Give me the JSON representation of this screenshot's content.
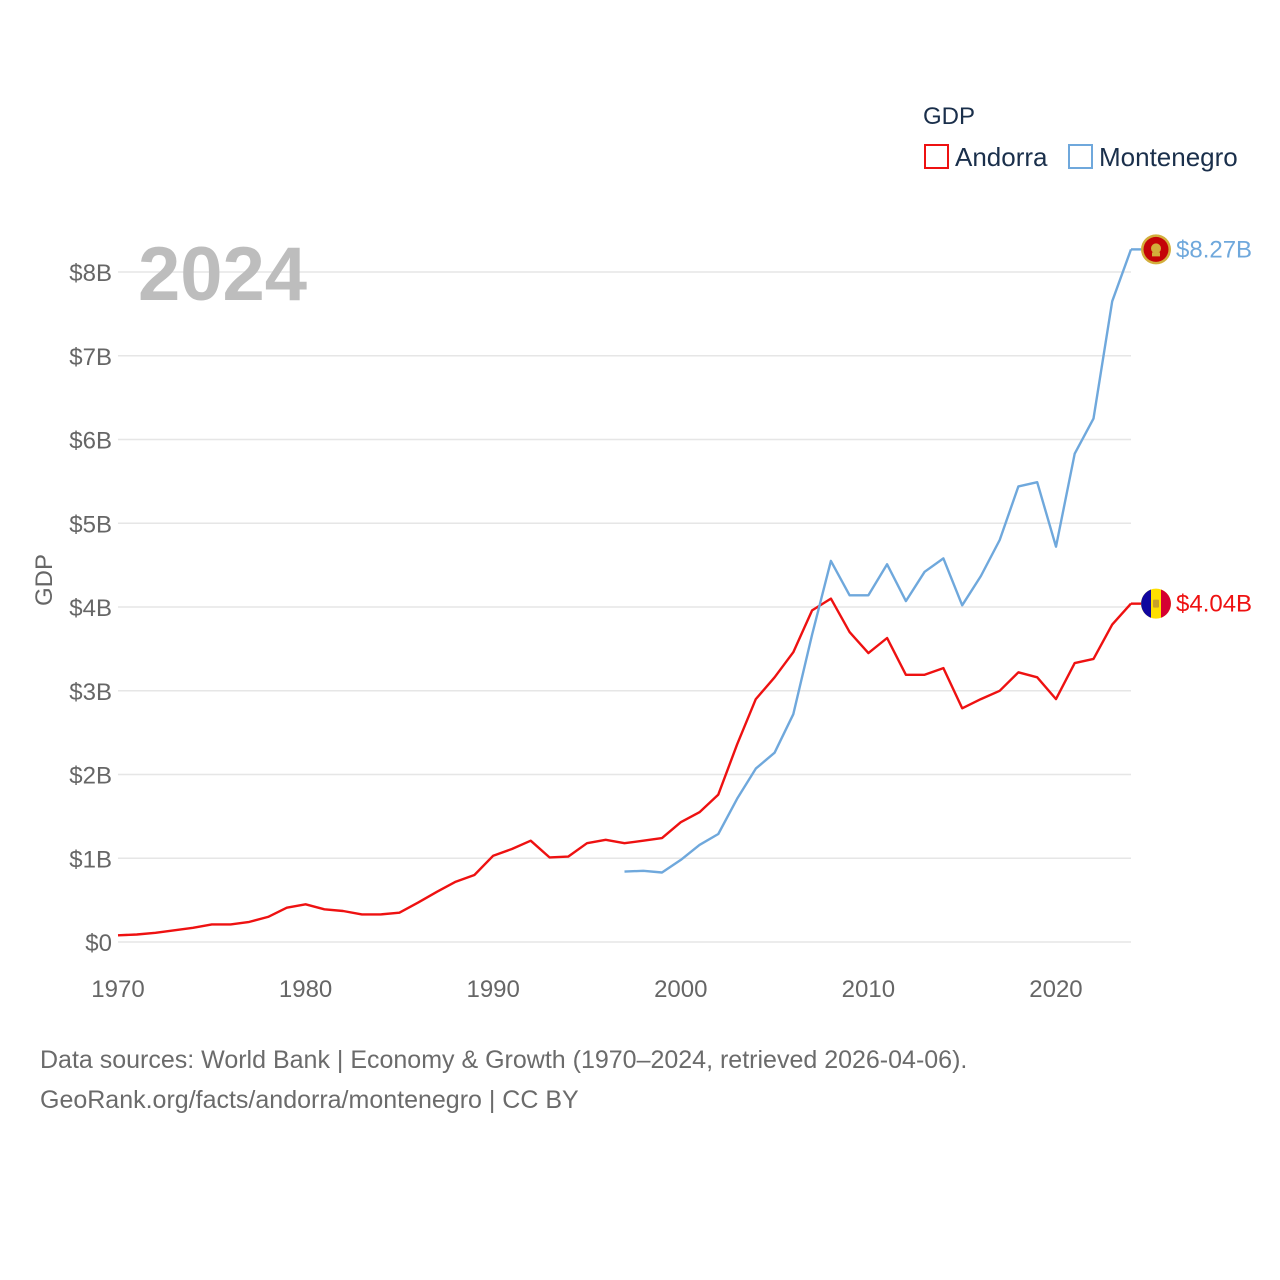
{
  "colors": {
    "andorra": "#ee1111",
    "montenegro": "#6fa8dc",
    "grid": "#e6e6e6",
    "text": "#666666"
  },
  "chart_data": {
    "type": "line",
    "title": "",
    "year_label": "2024",
    "legend_title": "GDP",
    "xlabel": "",
    "ylabel": "GDP",
    "xlim": [
      1970,
      2024
    ],
    "ylim": [
      0,
      8.5
    ],
    "x_ticks": [
      1970,
      1980,
      1990,
      2000,
      2010,
      2020
    ],
    "y_ticks": [
      0,
      1,
      2,
      3,
      4,
      5,
      6,
      7,
      8
    ],
    "y_tick_labels": [
      "$0",
      "$1B",
      "$2B",
      "$3B",
      "$4B",
      "$5B",
      "$6B",
      "$7B",
      "$8B"
    ],
    "legend_placement": "top-right",
    "series": [
      {
        "name": "Andorra",
        "key": "andorra",
        "end_label": "$4.04B",
        "unit": "billion USD",
        "x": [
          1970,
          1971,
          1972,
          1973,
          1974,
          1975,
          1976,
          1977,
          1978,
          1979,
          1980,
          1981,
          1982,
          1983,
          1984,
          1985,
          1986,
          1987,
          1988,
          1989,
          1990,
          1991,
          1992,
          1993,
          1994,
          1995,
          1996,
          1997,
          1998,
          1999,
          2000,
          2001,
          2002,
          2003,
          2004,
          2005,
          2006,
          2007,
          2008,
          2009,
          2010,
          2011,
          2012,
          2013,
          2014,
          2015,
          2016,
          2017,
          2018,
          2019,
          2020,
          2021,
          2022,
          2023,
          2024
        ],
        "values": [
          0.08,
          0.09,
          0.11,
          0.14,
          0.17,
          0.21,
          0.21,
          0.24,
          0.3,
          0.41,
          0.45,
          0.39,
          0.37,
          0.33,
          0.33,
          0.35,
          0.47,
          0.6,
          0.72,
          0.8,
          1.03,
          1.11,
          1.21,
          1.01,
          1.02,
          1.18,
          1.22,
          1.18,
          1.21,
          1.24,
          1.43,
          1.55,
          1.76,
          2.36,
          2.9,
          3.16,
          3.46,
          3.96,
          4.1,
          3.7,
          3.45,
          3.63,
          3.19,
          3.19,
          3.27,
          2.79,
          2.9,
          3.0,
          3.22,
          3.16,
          2.9,
          3.33,
          3.38,
          3.79,
          4.04
        ]
      },
      {
        "name": "Montenegro",
        "key": "montenegro",
        "end_label": "$8.27B",
        "unit": "billion USD",
        "x": [
          1997,
          1998,
          1999,
          2000,
          2001,
          2002,
          2003,
          2004,
          2005,
          2006,
          2007,
          2008,
          2009,
          2010,
          2011,
          2012,
          2013,
          2014,
          2015,
          2016,
          2017,
          2018,
          2019,
          2020,
          2021,
          2022,
          2023,
          2024
        ],
        "values": [
          0.84,
          0.85,
          0.83,
          0.98,
          1.16,
          1.29,
          1.71,
          2.07,
          2.26,
          2.72,
          3.67,
          4.55,
          4.14,
          4.14,
          4.51,
          4.07,
          4.42,
          4.58,
          4.02,
          4.37,
          4.8,
          5.44,
          5.49,
          4.72,
          5.83,
          6.25,
          7.65,
          8.27
        ]
      }
    ]
  },
  "source": {
    "line1": "Data sources: World Bank | Economy & Growth (1970–2024, retrieved 2026-04-06).",
    "line2": "GeoRank.org/facts/andorra/montenegro | CC BY"
  }
}
